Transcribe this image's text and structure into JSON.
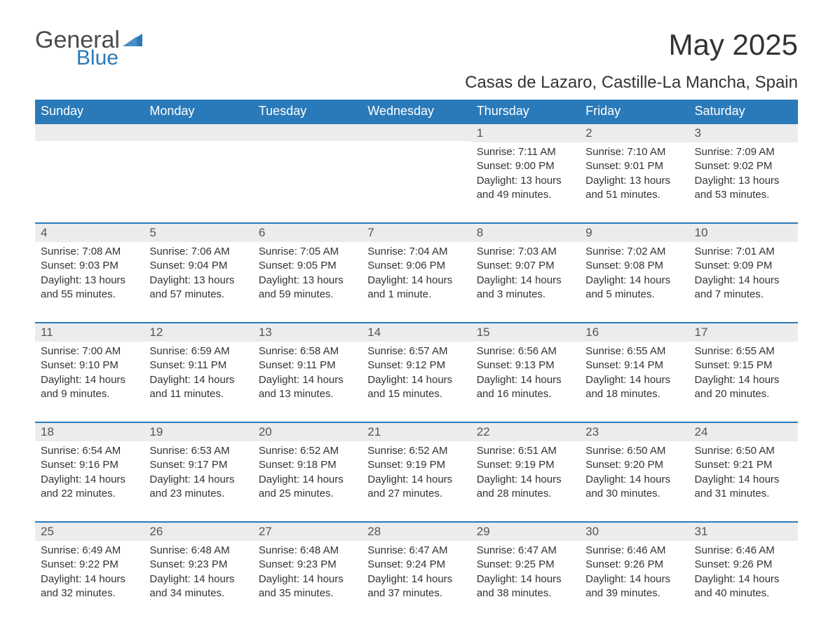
{
  "logo": {
    "general": "General",
    "blue": "Blue"
  },
  "title": "May 2025",
  "location": "Casas de Lazaro, Castille-La Mancha, Spain",
  "colors": {
    "header_bg": "#2a7ab9",
    "header_text": "#ffffff",
    "daynum_bg": "#ececec",
    "row_border": "#2a7ab9",
    "body_text": "#333333",
    "logo_gray": "#4a4a4a",
    "logo_blue": "#2a7ab9"
  },
  "weekdays": [
    "Sunday",
    "Monday",
    "Tuesday",
    "Wednesday",
    "Thursday",
    "Friday",
    "Saturday"
  ],
  "weeks": [
    [
      null,
      null,
      null,
      null,
      {
        "n": "1",
        "sr": "7:11 AM",
        "ss": "9:00 PM",
        "dl": "13 hours and 49 minutes."
      },
      {
        "n": "2",
        "sr": "7:10 AM",
        "ss": "9:01 PM",
        "dl": "13 hours and 51 minutes."
      },
      {
        "n": "3",
        "sr": "7:09 AM",
        "ss": "9:02 PM",
        "dl": "13 hours and 53 minutes."
      }
    ],
    [
      {
        "n": "4",
        "sr": "7:08 AM",
        "ss": "9:03 PM",
        "dl": "13 hours and 55 minutes."
      },
      {
        "n": "5",
        "sr": "7:06 AM",
        "ss": "9:04 PM",
        "dl": "13 hours and 57 minutes."
      },
      {
        "n": "6",
        "sr": "7:05 AM",
        "ss": "9:05 PM",
        "dl": "13 hours and 59 minutes."
      },
      {
        "n": "7",
        "sr": "7:04 AM",
        "ss": "9:06 PM",
        "dl": "14 hours and 1 minute."
      },
      {
        "n": "8",
        "sr": "7:03 AM",
        "ss": "9:07 PM",
        "dl": "14 hours and 3 minutes."
      },
      {
        "n": "9",
        "sr": "7:02 AM",
        "ss": "9:08 PM",
        "dl": "14 hours and 5 minutes."
      },
      {
        "n": "10",
        "sr": "7:01 AM",
        "ss": "9:09 PM",
        "dl": "14 hours and 7 minutes."
      }
    ],
    [
      {
        "n": "11",
        "sr": "7:00 AM",
        "ss": "9:10 PM",
        "dl": "14 hours and 9 minutes."
      },
      {
        "n": "12",
        "sr": "6:59 AM",
        "ss": "9:11 PM",
        "dl": "14 hours and 11 minutes."
      },
      {
        "n": "13",
        "sr": "6:58 AM",
        "ss": "9:11 PM",
        "dl": "14 hours and 13 minutes."
      },
      {
        "n": "14",
        "sr": "6:57 AM",
        "ss": "9:12 PM",
        "dl": "14 hours and 15 minutes."
      },
      {
        "n": "15",
        "sr": "6:56 AM",
        "ss": "9:13 PM",
        "dl": "14 hours and 16 minutes."
      },
      {
        "n": "16",
        "sr": "6:55 AM",
        "ss": "9:14 PM",
        "dl": "14 hours and 18 minutes."
      },
      {
        "n": "17",
        "sr": "6:55 AM",
        "ss": "9:15 PM",
        "dl": "14 hours and 20 minutes."
      }
    ],
    [
      {
        "n": "18",
        "sr": "6:54 AM",
        "ss": "9:16 PM",
        "dl": "14 hours and 22 minutes."
      },
      {
        "n": "19",
        "sr": "6:53 AM",
        "ss": "9:17 PM",
        "dl": "14 hours and 23 minutes."
      },
      {
        "n": "20",
        "sr": "6:52 AM",
        "ss": "9:18 PM",
        "dl": "14 hours and 25 minutes."
      },
      {
        "n": "21",
        "sr": "6:52 AM",
        "ss": "9:19 PM",
        "dl": "14 hours and 27 minutes."
      },
      {
        "n": "22",
        "sr": "6:51 AM",
        "ss": "9:19 PM",
        "dl": "14 hours and 28 minutes."
      },
      {
        "n": "23",
        "sr": "6:50 AM",
        "ss": "9:20 PM",
        "dl": "14 hours and 30 minutes."
      },
      {
        "n": "24",
        "sr": "6:50 AM",
        "ss": "9:21 PM",
        "dl": "14 hours and 31 minutes."
      }
    ],
    [
      {
        "n": "25",
        "sr": "6:49 AM",
        "ss": "9:22 PM",
        "dl": "14 hours and 32 minutes."
      },
      {
        "n": "26",
        "sr": "6:48 AM",
        "ss": "9:23 PM",
        "dl": "14 hours and 34 minutes."
      },
      {
        "n": "27",
        "sr": "6:48 AM",
        "ss": "9:23 PM",
        "dl": "14 hours and 35 minutes."
      },
      {
        "n": "28",
        "sr": "6:47 AM",
        "ss": "9:24 PM",
        "dl": "14 hours and 37 minutes."
      },
      {
        "n": "29",
        "sr": "6:47 AM",
        "ss": "9:25 PM",
        "dl": "14 hours and 38 minutes."
      },
      {
        "n": "30",
        "sr": "6:46 AM",
        "ss": "9:26 PM",
        "dl": "14 hours and 39 minutes."
      },
      {
        "n": "31",
        "sr": "6:46 AM",
        "ss": "9:26 PM",
        "dl": "14 hours and 40 minutes."
      }
    ]
  ],
  "labels": {
    "sunrise": "Sunrise: ",
    "sunset": "Sunset: ",
    "daylight": "Daylight: "
  }
}
